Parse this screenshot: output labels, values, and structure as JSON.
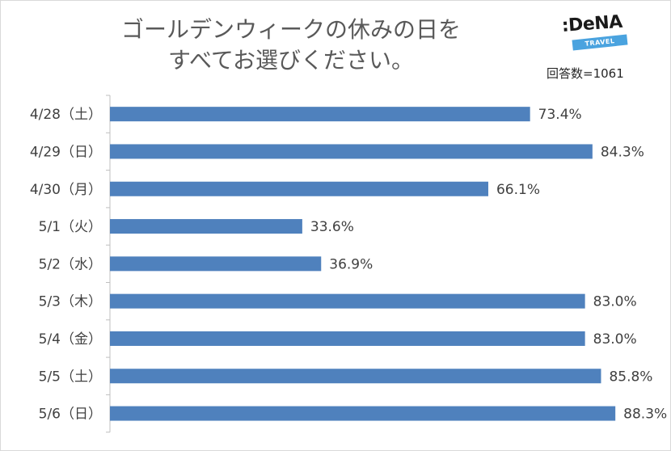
{
  "header": {
    "title_line1": "ゴールデンウィークの休みの日を",
    "title_line2": "すべてお選びください。",
    "respondents": "回答数=1061",
    "logo_text": ":DeNA",
    "logo_sub": "TRAVEL"
  },
  "colors": {
    "bar": "#4f81bd",
    "text": "#404040",
    "axis": "#bfbfbf",
    "logo_band": "#4aa3df"
  },
  "chart_data": {
    "type": "bar",
    "orientation": "horizontal",
    "title": "ゴールデンウィークの休みの日をすべてお選びください。",
    "xlabel": "",
    "ylabel": "",
    "xlim": [
      0,
      100
    ],
    "grid": false,
    "legend": "none",
    "categories": [
      "4/28（土）",
      "4/29（日）",
      "4/30（月）",
      "5/1（火）",
      "5/2（水）",
      "5/3（木）",
      "5/4（金）",
      "5/5（土）",
      "5/6（日）"
    ],
    "values": [
      73.4,
      84.3,
      66.1,
      33.6,
      36.9,
      83.0,
      83.0,
      85.8,
      88.3
    ],
    "value_labels": [
      "73.4%",
      "84.3%",
      "66.1%",
      "33.6%",
      "36.9%",
      "83.0%",
      "83.0%",
      "85.8%",
      "88.3%"
    ]
  }
}
